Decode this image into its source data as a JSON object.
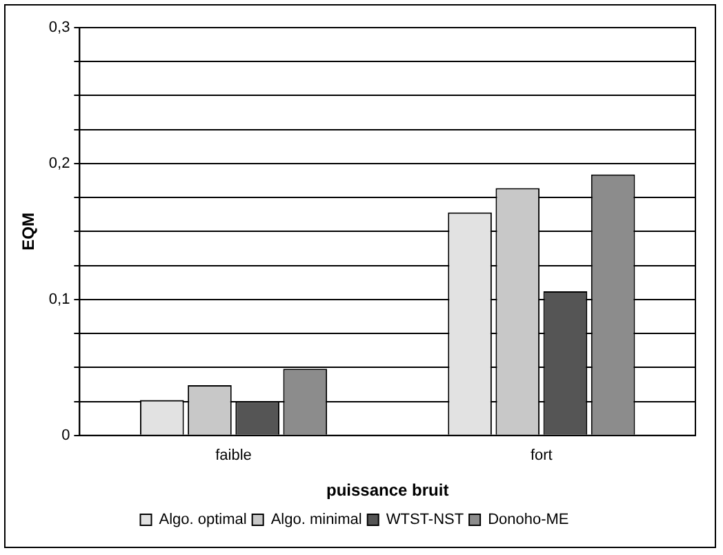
{
  "chart_data": {
    "type": "bar",
    "xlabel": "puissance bruit",
    "ylabel": "EQM",
    "categories": [
      "faible",
      "fort"
    ],
    "series": [
      {
        "name": "Algo. optimal",
        "color": "#e2e2e2",
        "values": [
          0.026,
          0.164
        ]
      },
      {
        "name": "Algo. minimal",
        "color": "#c8c8c8",
        "values": [
          0.037,
          0.182
        ]
      },
      {
        "name": "WTST-NST",
        "color": "#555555",
        "values": [
          0.025,
          0.106
        ]
      },
      {
        "name": "Donoho-ME",
        "color": "#8c8c8c",
        "values": [
          0.049,
          0.192
        ]
      }
    ],
    "ylim": [
      0,
      0.3
    ],
    "yticks": [
      {
        "value": 0,
        "label": "0"
      },
      {
        "value": 0.025,
        "label": null
      },
      {
        "value": 0.05,
        "label": null
      },
      {
        "value": 0.075,
        "label": null
      },
      {
        "value": 0.1,
        "label": "0,1"
      },
      {
        "value": 0.125,
        "label": null
      },
      {
        "value": 0.15,
        "label": null
      },
      {
        "value": 0.175,
        "label": null
      },
      {
        "value": 0.2,
        "label": "0,2"
      },
      {
        "value": 0.225,
        "label": null
      },
      {
        "value": 0.25,
        "label": null
      },
      {
        "value": 0.275,
        "label": null
      },
      {
        "value": 0.3,
        "label": "0,3"
      }
    ],
    "grid": "y",
    "legend": "bottom"
  }
}
